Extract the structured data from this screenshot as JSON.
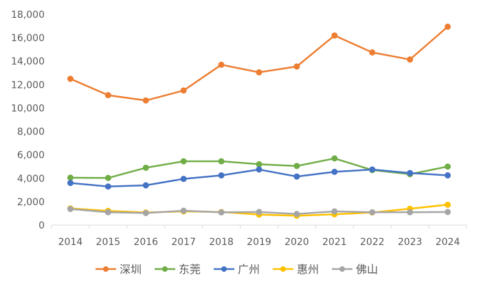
{
  "chart_data": {
    "type": "line",
    "title": "",
    "xlabel": "",
    "ylabel": "",
    "ylim": [
      0,
      18000
    ],
    "ytick_labels": [
      "0",
      "2,000",
      "4,000",
      "6,000",
      "8,000",
      "10,000",
      "12,000",
      "14,000",
      "16,000",
      "18,000"
    ],
    "ytick_values": [
      0,
      2000,
      4000,
      6000,
      8000,
      10000,
      12000,
      14000,
      16000,
      18000
    ],
    "grid": false,
    "legend_position": "bottom",
    "categories": [
      "2014",
      "2015",
      "2016",
      "2017",
      "2018",
      "2019",
      "2020",
      "2021",
      "2022",
      "2023",
      "2024"
    ],
    "series": [
      {
        "name": "深圳",
        "color": "#ED7D31",
        "values": [
          12500,
          11100,
          10650,
          11500,
          13700,
          13050,
          13550,
          16200,
          14750,
          14150,
          16950
        ]
      },
      {
        "name": "东莞",
        "color": "#70AD47",
        "values": [
          4050,
          4030,
          4900,
          5450,
          5450,
          5200,
          5050,
          5700,
          4700,
          4350,
          5000
        ]
      },
      {
        "name": "广州",
        "color": "#4472C4",
        "values": [
          3600,
          3300,
          3400,
          3950,
          4250,
          4750,
          4150,
          4550,
          4750,
          4450,
          4250
        ]
      },
      {
        "name": "惠州",
        "color": "#FFC000",
        "values": [
          1430,
          1220,
          1080,
          1170,
          1120,
          900,
          800,
          920,
          1080,
          1400,
          1740
        ]
      },
      {
        "name": "佛山",
        "color": "#A5A5A5",
        "values": [
          1380,
          1100,
          1030,
          1230,
          1090,
          1120,
          950,
          1170,
          1100,
          1100,
          1120
        ]
      }
    ]
  }
}
